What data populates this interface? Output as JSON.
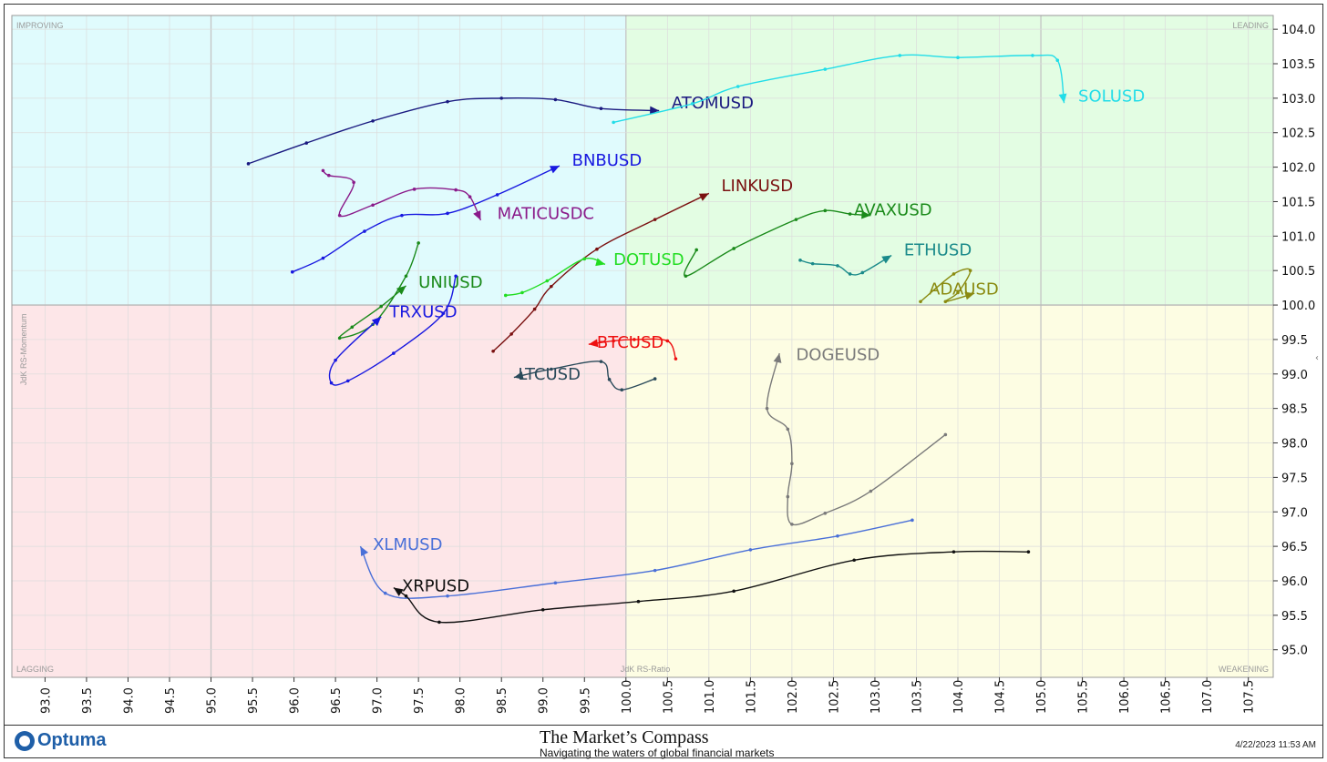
{
  "chart_data": {
    "type": "scatter",
    "subtype": "relative-rotation-graph",
    "xlabel": "JdK RS-Ratio",
    "ylabel": "JdK RS-Momentum",
    "xlim": [
      92.6,
      107.8
    ],
    "ylim": [
      94.6,
      104.2
    ],
    "x_ticks": [
      "93.0",
      "93.5",
      "94.0",
      "94.5",
      "95.0",
      "95.5",
      "96.0",
      "96.5",
      "97.0",
      "97.5",
      "98.0",
      "98.5",
      "99.0",
      "99.5",
      "100.0",
      "100.5",
      "101.0",
      "101.5",
      "102.0",
      "102.5",
      "103.0",
      "103.5",
      "104.0",
      "104.5",
      "105.0",
      "105.5",
      "106.0",
      "106.5",
      "107.0",
      "107.5"
    ],
    "y_ticks": [
      "95.0",
      "95.5",
      "96.0",
      "96.5",
      "97.0",
      "97.5",
      "98.0",
      "98.5",
      "99.0",
      "99.5",
      "100.0",
      "100.5",
      "101.0",
      "101.5",
      "102.0",
      "102.5",
      "103.0",
      "103.5",
      "104.0"
    ],
    "quadrants": {
      "improving": {
        "label": "IMPROVING",
        "color": "#e0fbfd"
      },
      "leading": {
        "label": "LEADING",
        "color": "#e3fde3"
      },
      "lagging": {
        "label": "LAGGING",
        "color": "#fde6e8"
      },
      "weakening": {
        "label": "WEAKENING",
        "color": "#fdfde3"
      }
    },
    "grid": true,
    "series": [
      {
        "name": "ATOMUSD",
        "color": "#1a1a80",
        "label_at": [
          100.55,
          102.85
        ],
        "points": [
          [
            95.45,
            102.05
          ],
          [
            96.15,
            102.35
          ],
          [
            96.95,
            102.67
          ],
          [
            97.85,
            102.95
          ],
          [
            98.5,
            103.0
          ],
          [
            99.15,
            102.98
          ],
          [
            99.7,
            102.85
          ],
          [
            100.4,
            102.82
          ]
        ]
      },
      {
        "name": "SOLUSD",
        "color": "#22dde8",
        "label_at": [
          105.45,
          102.95
        ],
        "points": [
          [
            99.85,
            102.65
          ],
          [
            100.8,
            102.92
          ],
          [
            101.35,
            103.17
          ],
          [
            102.4,
            103.42
          ],
          [
            103.3,
            103.62
          ],
          [
            104.0,
            103.59
          ],
          [
            104.9,
            103.62
          ],
          [
            105.2,
            103.55
          ],
          [
            105.28,
            102.93
          ]
        ]
      },
      {
        "name": "BNBUSD",
        "color": "#1818e0",
        "label_at": [
          99.35,
          102.02
        ],
        "points": [
          [
            95.98,
            100.48
          ],
          [
            96.35,
            100.68
          ],
          [
            96.85,
            101.07
          ],
          [
            97.3,
            101.3
          ],
          [
            97.85,
            101.33
          ],
          [
            98.45,
            101.6
          ],
          [
            99.2,
            102.02
          ]
        ]
      },
      {
        "name": "MATICUSDC",
        "color": "#8a1a8a",
        "label_at": [
          98.45,
          101.25
        ],
        "points": [
          [
            96.35,
            101.95
          ],
          [
            96.42,
            101.88
          ],
          [
            96.72,
            101.78
          ],
          [
            96.55,
            101.3
          ],
          [
            96.95,
            101.45
          ],
          [
            97.45,
            101.68
          ],
          [
            97.95,
            101.67
          ],
          [
            98.12,
            101.57
          ],
          [
            98.25,
            101.23
          ]
        ]
      },
      {
        "name": "LINKUSD",
        "color": "#7a1010",
        "label_at": [
          101.15,
          101.65
        ],
        "points": [
          [
            98.4,
            99.33
          ],
          [
            98.62,
            99.58
          ],
          [
            98.9,
            99.94
          ],
          [
            99.1,
            100.27
          ],
          [
            99.65,
            100.81
          ],
          [
            100.35,
            101.24
          ],
          [
            101.0,
            101.62
          ]
        ]
      },
      {
        "name": "AVAXUSD",
        "color": "#1a8a1a",
        "label_at": [
          102.75,
          101.3
        ],
        "points": [
          [
            100.85,
            100.8
          ],
          [
            100.72,
            100.42
          ],
          [
            101.3,
            100.82
          ],
          [
            102.05,
            101.24
          ],
          [
            102.4,
            101.37
          ],
          [
            102.7,
            101.32
          ],
          [
            102.95,
            101.3
          ]
        ]
      },
      {
        "name": "ETHUSD",
        "color": "#1a8a8a",
        "label_at": [
          103.35,
          100.72
        ],
        "points": [
          [
            102.1,
            100.65
          ],
          [
            102.25,
            100.6
          ],
          [
            102.55,
            100.57
          ],
          [
            102.7,
            100.45
          ],
          [
            102.85,
            100.47
          ],
          [
            103.2,
            100.72
          ]
        ]
      },
      {
        "name": "ADAUSD",
        "color": "#8a8a10",
        "label_at": [
          103.65,
          100.15
        ],
        "points": [
          [
            103.55,
            100.05
          ],
          [
            103.95,
            100.45
          ],
          [
            104.15,
            100.5
          ],
          [
            104.0,
            100.18
          ],
          [
            103.85,
            100.05
          ],
          [
            104.2,
            100.17
          ]
        ]
      },
      {
        "name": "DOTUSD",
        "color": "#22dd22",
        "label_at": [
          99.85,
          100.58
        ],
        "points": [
          [
            98.55,
            100.14
          ],
          [
            98.75,
            100.18
          ],
          [
            99.05,
            100.35
          ],
          [
            99.5,
            100.67
          ],
          [
            99.75,
            100.59
          ]
        ]
      },
      {
        "name": "UNIUSD",
        "color": "#1a8a1a",
        "label_at": [
          97.5,
          100.25
        ],
        "points": [
          [
            97.5,
            100.9
          ],
          [
            97.35,
            100.42
          ],
          [
            96.95,
            99.72
          ],
          [
            96.55,
            99.52
          ],
          [
            96.7,
            99.68
          ],
          [
            97.05,
            99.98
          ],
          [
            97.35,
            100.28
          ]
        ]
      },
      {
        "name": "TRXUSD",
        "color": "#1818e0",
        "label_at": [
          97.15,
          99.82
        ],
        "points": [
          [
            97.95,
            100.42
          ],
          [
            97.8,
            99.88
          ],
          [
            97.2,
            99.3
          ],
          [
            96.65,
            98.9
          ],
          [
            96.45,
            98.87
          ],
          [
            96.5,
            99.2
          ],
          [
            97.05,
            99.83
          ]
        ]
      },
      {
        "name": "BTCUSD",
        "color": "#ee1010",
        "label_at": [
          99.65,
          99.38
        ],
        "points": [
          [
            100.6,
            99.22
          ],
          [
            100.5,
            99.48
          ],
          [
            100.1,
            99.5
          ],
          [
            99.85,
            99.48
          ],
          [
            99.55,
            99.43
          ]
        ]
      },
      {
        "name": "LTCUSD",
        "color": "#2a4a5a",
        "label_at": [
          98.7,
          98.92
        ],
        "points": [
          [
            100.35,
            98.93
          ],
          [
            99.95,
            98.77
          ],
          [
            99.8,
            98.92
          ],
          [
            99.7,
            99.18
          ],
          [
            99.1,
            99.07
          ],
          [
            98.65,
            98.95
          ]
        ]
      },
      {
        "name": "DOGEUSD",
        "color": "#7a7a7a",
        "label_at": [
          102.05,
          99.2
        ],
        "points": [
          [
            103.85,
            98.12
          ],
          [
            102.95,
            97.3
          ],
          [
            102.4,
            96.98
          ],
          [
            102.0,
            96.82
          ],
          [
            101.95,
            97.22
          ],
          [
            102.0,
            97.7
          ],
          [
            101.95,
            98.2
          ],
          [
            101.7,
            98.5
          ],
          [
            101.85,
            99.3
          ]
        ]
      },
      {
        "name": "XLMUSD",
        "color": "#4a70d8",
        "label_at": [
          96.95,
          96.45
        ],
        "points": [
          [
            103.45,
            96.88
          ],
          [
            102.55,
            96.65
          ],
          [
            101.5,
            96.45
          ],
          [
            100.35,
            96.15
          ],
          [
            99.15,
            95.97
          ],
          [
            97.85,
            95.78
          ],
          [
            97.1,
            95.82
          ],
          [
            96.8,
            96.5
          ]
        ]
      },
      {
        "name": "XRPUSD",
        "color": "#111111",
        "label_at": [
          97.3,
          95.85
        ],
        "points": [
          [
            104.85,
            96.42
          ],
          [
            103.95,
            96.42
          ],
          [
            102.75,
            96.3
          ],
          [
            101.3,
            95.85
          ],
          [
            100.15,
            95.7
          ],
          [
            99.0,
            95.58
          ],
          [
            97.75,
            95.4
          ],
          [
            97.35,
            95.78
          ],
          [
            97.2,
            95.9
          ]
        ]
      }
    ]
  },
  "footer": {
    "brand_logo": "Optuma",
    "brand_title": "The Market’s Compass",
    "brand_subtitle": "Navigating the waters of global financial markets",
    "timestamp": "4/22/2023 11:53 AM"
  }
}
